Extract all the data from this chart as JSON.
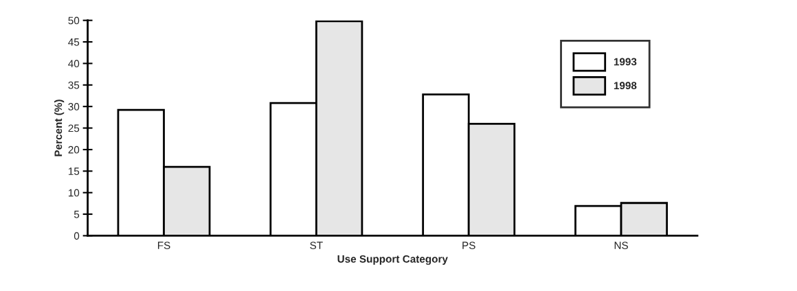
{
  "chart_data": {
    "type": "bar",
    "xlabel": "Use Support Category",
    "ylabel": "Percent (%)",
    "categories": [
      "FS",
      "ST",
      "PS",
      "NS"
    ],
    "series": [
      {
        "name": "1993",
        "color": "#ffffff",
        "values": [
          29.2,
          30.8,
          32.8,
          6.9
        ]
      },
      {
        "name": "1998",
        "color": "#e6e6e6",
        "values": [
          16.0,
          49.8,
          26.0,
          7.6
        ]
      }
    ],
    "ylim": [
      0,
      50
    ],
    "yticks": [
      0,
      5,
      10,
      15,
      20,
      25,
      30,
      35,
      40,
      45,
      50
    ],
    "grid": false,
    "legend": "top right"
  }
}
